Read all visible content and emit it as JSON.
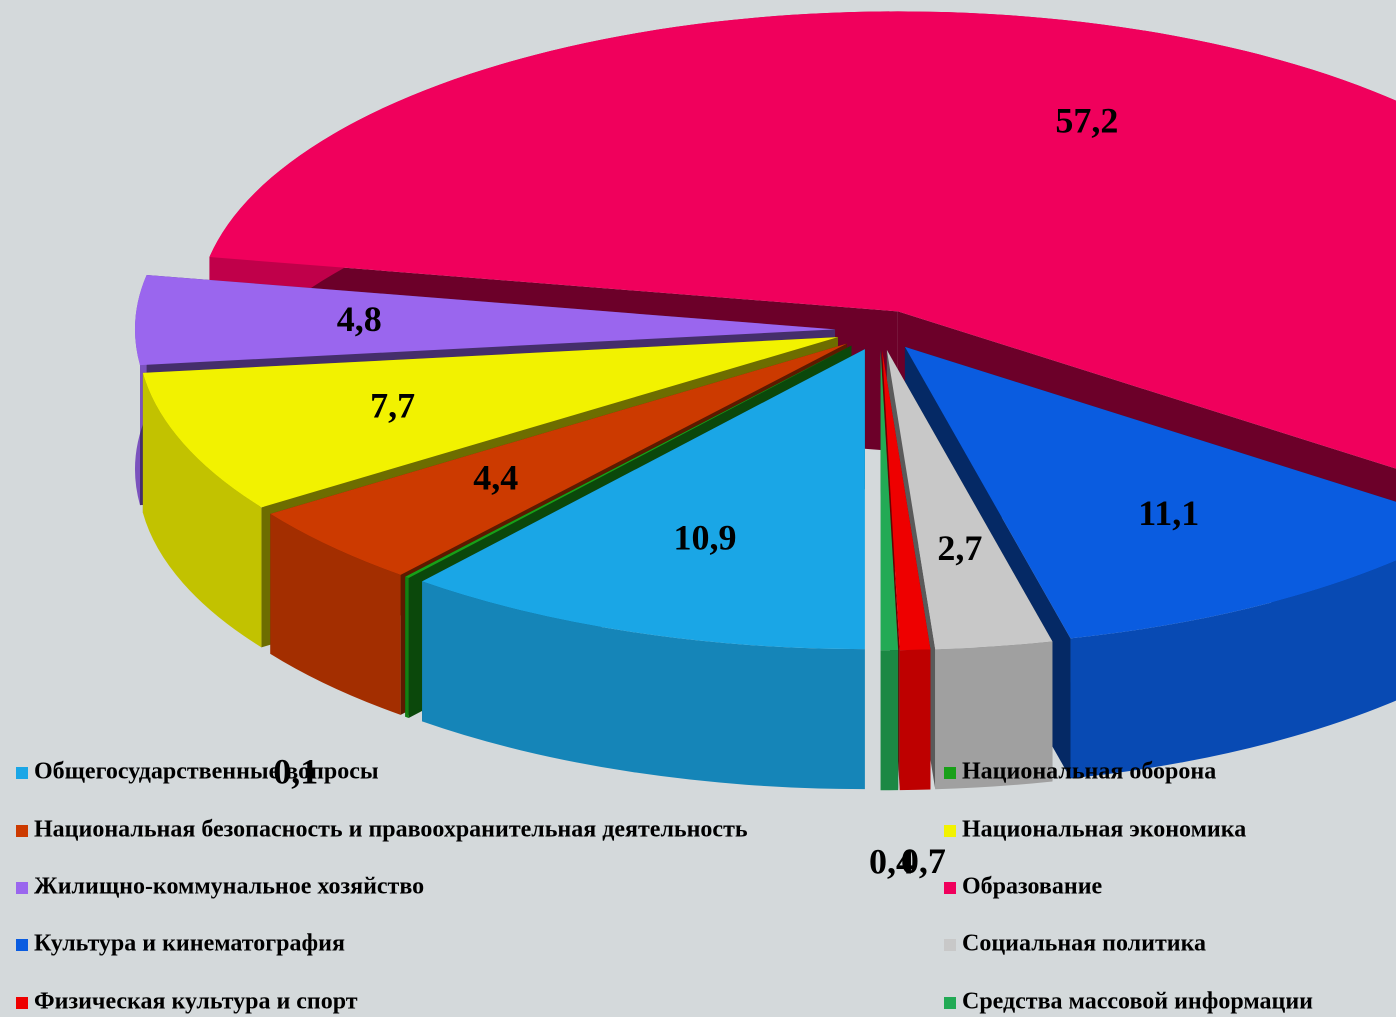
{
  "chart_data": {
    "type": "pie",
    "categories": [
      "Общегосударственные вопросы",
      "Национальная оборона",
      "Национальная безопасность и правоохранительная деятельность",
      "Национальная экономика",
      "Жилищно-коммунальное хозяйство",
      "Образование",
      "Культура и кинематография",
      "Социальная политика",
      "Физическая культура и спорт",
      "Средства массовой информации"
    ],
    "values": [
      10.9,
      0.1,
      4.4,
      7.7,
      4.8,
      57.2,
      11.1,
      2.7,
      0.7,
      0.4
    ],
    "value_labels": [
      "10,9",
      "0,1",
      "4,4",
      "7,7",
      "4,8",
      "57,2",
      "11,1",
      "2,7",
      "0,7",
      "0,4"
    ],
    "colors": [
      "#1aa6e6",
      "#18a018",
      "#cc3a00",
      "#f2f200",
      "#9a66ee",
      "#f0005c",
      "#0a5ce0",
      "#c8c8c8",
      "#ee0000",
      "#22aa55"
    ],
    "legend": "bottom"
  }
}
